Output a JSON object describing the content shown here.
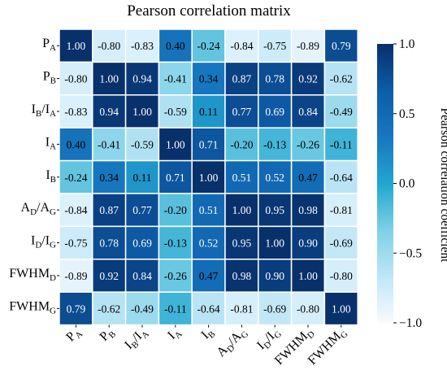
{
  "chart_data": {
    "type": "heatmap",
    "title": "Pearson correlation matrix",
    "row_labels": [
      {
        "base": "P",
        "sub": "A"
      },
      {
        "base": "P",
        "sub": "B"
      },
      {
        "base": "I",
        "sub": "B",
        "mid": "/I",
        "sub2": "A"
      },
      {
        "base": "I",
        "sub": "A"
      },
      {
        "base": "I",
        "sub": "B"
      },
      {
        "base": "A",
        "sub": "D",
        "mid": "/A",
        "sub2": "G"
      },
      {
        "base": "I",
        "sub": "D",
        "mid": "/I",
        "sub2": "G"
      },
      {
        "base": "FWHM",
        "sub": "D"
      },
      {
        "base": "FWHM",
        "sub": "G"
      }
    ],
    "col_labels": [
      {
        "base": "P",
        "sub": "A"
      },
      {
        "base": "P",
        "sub": "B"
      },
      {
        "base": "I",
        "sub": "B",
        "mid": "/I",
        "sub2": "A"
      },
      {
        "base": "I",
        "sub": "A"
      },
      {
        "base": "I",
        "sub": "B"
      },
      {
        "base": "A",
        "sub": "D",
        "mid": "/A",
        "sub2": "G"
      },
      {
        "base": "I",
        "sub": "D",
        "mid": "/I",
        "sub2": "G"
      },
      {
        "base": "FWHM",
        "sub": "D"
      },
      {
        "base": "FWHM",
        "sub": "G"
      }
    ],
    "values": [
      [
        1.0,
        -0.8,
        -0.83,
        0.4,
        -0.24,
        -0.84,
        -0.75,
        -0.89,
        0.79
      ],
      [
        -0.8,
        1.0,
        0.94,
        -0.41,
        0.34,
        0.87,
        0.78,
        0.92,
        -0.62
      ],
      [
        -0.83,
        0.94,
        1.0,
        -0.59,
        0.11,
        0.77,
        0.69,
        0.84,
        -0.49
      ],
      [
        0.4,
        -0.41,
        -0.59,
        1.0,
        0.71,
        -0.2,
        -0.13,
        -0.26,
        -0.11
      ],
      [
        -0.24,
        0.34,
        0.11,
        0.71,
        1.0,
        0.51,
        0.52,
        0.47,
        -0.64
      ],
      [
        -0.84,
        0.87,
        0.77,
        -0.2,
        0.51,
        1.0,
        0.95,
        0.98,
        -0.81
      ],
      [
        -0.75,
        0.78,
        0.69,
        -0.13,
        0.52,
        0.95,
        1.0,
        0.9,
        -0.69
      ],
      [
        -0.89,
        0.92,
        0.84,
        -0.26,
        0.47,
        0.98,
        0.9,
        1.0,
        -0.8
      ],
      [
        0.79,
        -0.62,
        -0.49,
        -0.11,
        -0.64,
        -0.81,
        -0.69,
        -0.8,
        1.0
      ]
    ],
    "colorbar": {
      "label": "Pearson correlation coefficient",
      "range": [
        -1.0,
        1.0
      ],
      "ticks": [
        1.0,
        0.5,
        0.0,
        -0.5,
        -1.0
      ],
      "tick_labels": [
        "1.0",
        "0.5",
        "0.0",
        "−0.5",
        "−1.0"
      ],
      "colormap": "light-blue to dark navy",
      "colors": [
        "#f7fbff",
        "#bfe6f6",
        "#7dd0e6",
        "#21a6cf",
        "#1777c0",
        "#0e5ca8",
        "#08306b"
      ]
    },
    "cell_border_color": "#ffffff",
    "light_text_color": "#ffffff",
    "dark_text_color": "#000000"
  }
}
